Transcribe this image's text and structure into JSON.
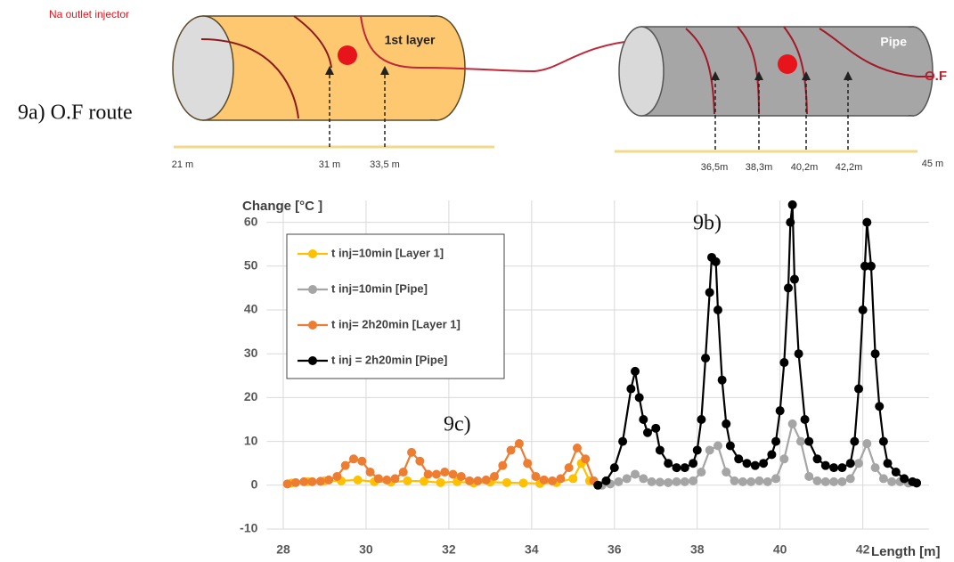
{
  "diagram": {
    "panel_label": "9a) O.F route",
    "injector_label": "Na outlet injector",
    "layer_label": "1st layer",
    "pipe_label": "Pipe",
    "of_label": "O.F",
    "ruler_left": [
      "21 m",
      "31 m",
      "33,5 m"
    ],
    "ruler_right": [
      "36,5m",
      "38,3m",
      "40,2m",
      "42,2m",
      "45 m"
    ]
  },
  "chart_data": {
    "type": "line",
    "ylabel": "Change [°C ]",
    "xlabel": "Length [m]",
    "annotations": [
      "9b)",
      "9c)"
    ],
    "xlim": [
      27.6,
      43.6
    ],
    "ylim": [
      -10,
      65
    ],
    "xticks": [
      28,
      30,
      32,
      34,
      36,
      38,
      40,
      42
    ],
    "yticks": [
      -10,
      0,
      10,
      20,
      30,
      40,
      50,
      60
    ],
    "grid": true,
    "legend": "upper-left",
    "series": [
      {
        "name": "t inj=10min [Layer 1]",
        "color": "#ffc000",
        "x": [
          28.2,
          28.6,
          29.0,
          29.4,
          29.8,
          30.2,
          30.6,
          31.0,
          31.4,
          31.8,
          32.2,
          32.6,
          33.0,
          33.4,
          33.8,
          34.2,
          34.6,
          35.0,
          35.2,
          35.4
        ],
        "values": [
          0.5,
          0.8,
          1,
          1,
          1.2,
          0.8,
          0.7,
          1,
          0.9,
          0.6,
          0.8,
          0.5,
          0.7,
          0.6,
          0.5,
          0.4,
          0.6,
          1.5,
          5,
          1
        ]
      },
      {
        "name": "t inj=10min [Pipe]",
        "color": "#a5a5a5",
        "x": [
          35.7,
          35.9,
          36.1,
          36.3,
          36.5,
          36.7,
          36.9,
          37.1,
          37.3,
          37.5,
          37.7,
          37.9,
          38.1,
          38.3,
          38.5,
          38.7,
          38.9,
          39.1,
          39.3,
          39.5,
          39.7,
          39.9,
          40.1,
          40.3,
          40.5,
          40.7,
          40.9,
          41.1,
          41.3,
          41.5,
          41.7,
          41.9,
          42.1,
          42.3,
          42.5,
          42.7,
          42.9,
          43.1,
          43.3
        ],
        "values": [
          0,
          0.3,
          0.8,
          1.5,
          2.5,
          1.5,
          0.8,
          0.7,
          0.6,
          0.8,
          0.8,
          1,
          3,
          8,
          9,
          3,
          1,
          0.8,
          0.8,
          1,
          0.8,
          1.5,
          6,
          14,
          10,
          2,
          1,
          0.8,
          0.8,
          0.8,
          1.5,
          5,
          9.5,
          4,
          1.5,
          0.8,
          0.8,
          0.5,
          0.5
        ]
      },
      {
        "name": "t inj= 2h20min [Layer 1]",
        "color": "#ed7d31",
        "x": [
          28.1,
          28.3,
          28.5,
          28.7,
          28.9,
          29.1,
          29.3,
          29.5,
          29.7,
          29.9,
          30.1,
          30.3,
          30.5,
          30.7,
          30.9,
          31.1,
          31.3,
          31.5,
          31.7,
          31.9,
          32.1,
          32.3,
          32.5,
          32.7,
          32.9,
          33.1,
          33.3,
          33.5,
          33.7,
          33.9,
          34.1,
          34.3,
          34.5,
          34.7,
          34.9,
          35.1,
          35.3,
          35.5
        ],
        "values": [
          0.3,
          0.6,
          0.8,
          0.8,
          0.9,
          1.2,
          2,
          4.5,
          6,
          5.5,
          3,
          1.5,
          1.2,
          1.5,
          3,
          7.5,
          5.5,
          2.5,
          2.5,
          3,
          2.5,
          2,
          1,
          1,
          1.2,
          2,
          4.5,
          8,
          9.5,
          5,
          2,
          1.2,
          1,
          1.5,
          4,
          8.5,
          6,
          1
        ]
      },
      {
        "name": "t inj = 2h20min [Pipe]",
        "color": "#000000",
        "x": [
          35.6,
          35.8,
          36.0,
          36.2,
          36.4,
          36.5,
          36.6,
          36.7,
          36.8,
          37.0,
          37.1,
          37.3,
          37.5,
          37.7,
          37.9,
          38.0,
          38.1,
          38.2,
          38.3,
          38.35,
          38.45,
          38.5,
          38.6,
          38.7,
          38.8,
          39.0,
          39.2,
          39.4,
          39.6,
          39.8,
          39.9,
          40.0,
          40.1,
          40.2,
          40.25,
          40.3,
          40.35,
          40.45,
          40.6,
          40.7,
          40.9,
          41.1,
          41.3,
          41.5,
          41.7,
          41.8,
          41.9,
          42.0,
          42.05,
          42.1,
          42.2,
          42.3,
          42.4,
          42.5,
          42.6,
          42.8,
          43.0,
          43.2,
          43.3
        ],
        "values": [
          0,
          1,
          4,
          10,
          22,
          26,
          20,
          15,
          12,
          13,
          8,
          5,
          4,
          4,
          5,
          8,
          15,
          29,
          44,
          52,
          51,
          40,
          24,
          14,
          9,
          6,
          5,
          4.5,
          5,
          7,
          10,
          17,
          28,
          45,
          60,
          64,
          47,
          30,
          15,
          10,
          6,
          4.5,
          4,
          4,
          5,
          10,
          22,
          40,
          50,
          60,
          50,
          30,
          18,
          10,
          5,
          3,
          1.5,
          0.8,
          0.5
        ]
      }
    ]
  }
}
